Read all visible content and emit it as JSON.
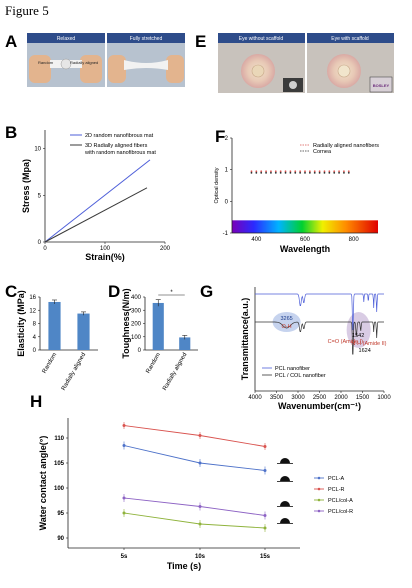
{
  "figure_title": "Figure 5",
  "panels": {
    "A": {
      "letter": "A",
      "photo_labels": [
        "Relaxed",
        "Fully stretched"
      ],
      "inset_labels": [
        "Random",
        "Radially aligned"
      ]
    },
    "E": {
      "letter": "E",
      "photo_labels": [
        "Eye without scaffold",
        "Eye with scaffold"
      ],
      "inset_text": "BOSLEY"
    },
    "B": {
      "letter": "B"
    },
    "F": {
      "letter": "F"
    },
    "C": {
      "letter": "C"
    },
    "D": {
      "letter": "D",
      "sig_mark": "*"
    },
    "G": {
      "letter": "G",
      "annotations": [
        "3265",
        "O-H",
        "C=O (Amide I)",
        "1542",
        "N-H (Amide II)",
        "1624"
      ]
    },
    "H": {
      "letter": "H"
    }
  },
  "colors": {
    "blue": "#4e5fd9",
    "dark": "#3a3a3a",
    "bar": "#4f86c6",
    "red": "#d9534f",
    "green": "#8fb33c",
    "purple": "#8d63c4",
    "ir_highlight": "#b8c8ea"
  },
  "chart_data": [
    {
      "panel": "B",
      "type": "line",
      "xlabel": "Strain(%)",
      "ylabel": "Stress (Mpa)",
      "xlim": [
        0,
        200
      ],
      "ylim": [
        0,
        12
      ],
      "xticks": [
        0,
        100,
        200
      ],
      "yticks": [
        0,
        5,
        10
      ],
      "legend": "top-left",
      "series": [
        {
          "name": "2D random nanofibrous mat",
          "color": "#4e5fd9",
          "points": [
            [
              0,
              0
            ],
            [
              175,
              8.8
            ]
          ]
        },
        {
          "name": "3D Radially aligned fibers with random nanofibrous mat",
          "color": "#3a3a3a",
          "points": [
            [
              0,
              0
            ],
            [
              170,
              5.8
            ]
          ]
        }
      ]
    },
    {
      "panel": "F",
      "type": "scatter",
      "xlabel": "Wavelength",
      "ylabel": "Optical density",
      "xlim": [
        300,
        900
      ],
      "ylim": [
        -1,
        2
      ],
      "xticks": [
        400,
        600,
        800
      ],
      "yticks": [
        -1,
        0,
        1,
        2
      ],
      "legend": "top-right",
      "series": [
        {
          "name": "Radially aligned nanofibers",
          "color": "#d9534f",
          "x_range": [
            380,
            780
          ],
          "y": 0.95
        },
        {
          "name": "Cornea",
          "color": "#333333",
          "x_range": [
            380,
            780
          ],
          "y": 0.9
        }
      ]
    },
    {
      "panel": "C",
      "type": "bar",
      "ylabel": "Elasticity (MPa)",
      "categories": [
        "Random",
        "Radially aligned"
      ],
      "values": [
        14.5,
        11.0
      ],
      "errors": [
        0.6,
        0.5
      ],
      "ylim": [
        0,
        16
      ],
      "yticks": [
        0,
        4,
        8,
        12,
        16
      ]
    },
    {
      "panel": "D",
      "type": "bar",
      "ylabel": "Toughness(N/m)",
      "categories": [
        "Random",
        "Radially aligned"
      ],
      "values": [
        355,
        95
      ],
      "errors": [
        25,
        15
      ],
      "ylim": [
        0,
        400
      ],
      "yticks": [
        0,
        100,
        200,
        300,
        400
      ]
    },
    {
      "panel": "G",
      "type": "line",
      "xlabel": "Wavenumber(cm⁻¹)",
      "ylabel": "Transmittance(a.u.)",
      "xlim": [
        4000,
        1000
      ],
      "xticks": [
        4000,
        3500,
        3000,
        2500,
        2000,
        1500,
        1000
      ],
      "legend": "bottom-left",
      "series": [
        {
          "name": "PCL nanofiber",
          "color": "#4e5fd9"
        },
        {
          "name": "PCL / COL nanofiber",
          "color": "#333333"
        }
      ]
    },
    {
      "panel": "H",
      "type": "line",
      "xlabel": "Time (s)",
      "ylabel": "Water contact angle(°)",
      "categories": [
        "5s",
        "10s",
        "15s"
      ],
      "ylim": [
        88,
        114
      ],
      "yticks": [
        90,
        95,
        100,
        105,
        110
      ],
      "legend": "right",
      "series": [
        {
          "name": "PCL-A",
          "color": "#4e72c9",
          "values": [
            108.5,
            105.0,
            103.5
          ],
          "errors": [
            0.8,
            0.8,
            0.8
          ]
        },
        {
          "name": "PCL-R",
          "color": "#d9534f",
          "values": [
            112.5,
            110.5,
            108.3
          ],
          "errors": [
            0.7,
            0.7,
            0.7
          ]
        },
        {
          "name": "PCL/col-A",
          "color": "#8fb33c",
          "values": [
            95.0,
            92.8,
            92.0
          ],
          "errors": [
            0.8,
            0.8,
            0.8
          ]
        },
        {
          "name": "PCL/col-R",
          "color": "#8d63c4",
          "values": [
            98.0,
            96.3,
            94.5
          ],
          "errors": [
            0.8,
            0.8,
            0.8
          ]
        }
      ]
    }
  ]
}
